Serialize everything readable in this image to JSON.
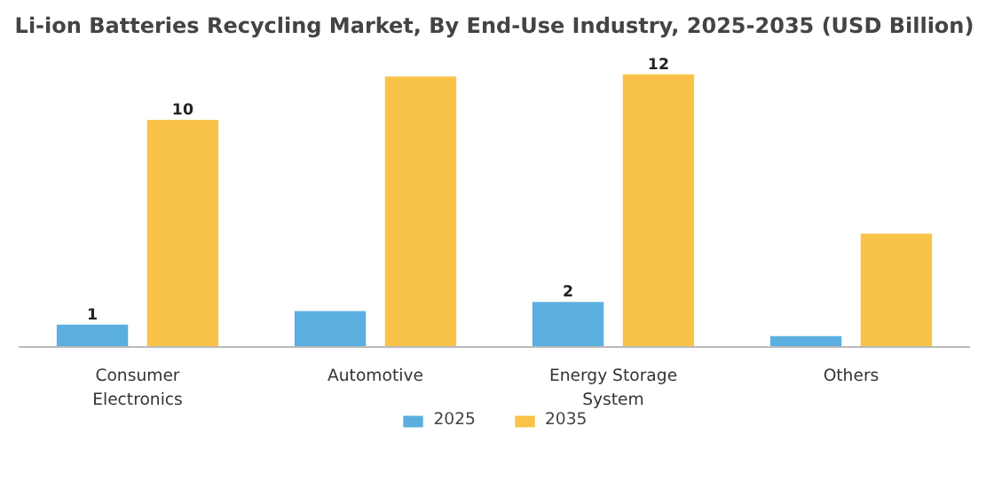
{
  "chart_data": {
    "type": "bar",
    "title": "Li-ion Batteries Recycling Market, By End-Use Industry, 2025-2035 (USD Billion)",
    "categories": [
      "Consumer Electronics",
      "Automotive",
      "Energy Storage System",
      "Others"
    ],
    "series": [
      {
        "name": "2025",
        "color": "#5aafe0",
        "values": [
          1,
          1.6,
          2,
          0.5
        ],
        "value_labels": [
          "1",
          null,
          "2",
          null
        ]
      },
      {
        "name": "2035",
        "color": "#f9c349",
        "values": [
          10,
          11.9,
          12,
          5
        ],
        "value_labels": [
          "10",
          null,
          "12",
          null
        ]
      }
    ],
    "legend": "bottom"
  }
}
